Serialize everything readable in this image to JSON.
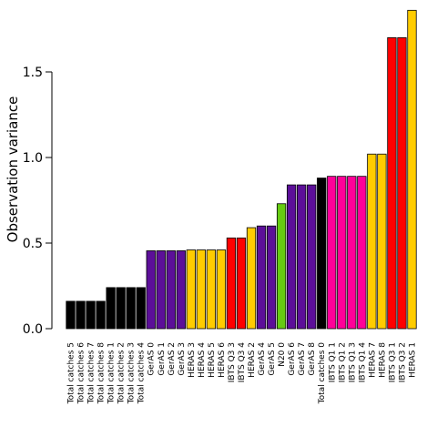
{
  "chart_data": {
    "type": "bar",
    "ylabel": "Observation variance",
    "xlabel": "",
    "ylim": [
      0,
      1.85
    ],
    "yticks": [
      "0.0",
      "0.5",
      "1.0",
      "1.5"
    ],
    "grid": false,
    "legend": "none",
    "categories": [
      "Total catches 5",
      "Total catches 6",
      "Total catches 7",
      "Total catches 8",
      "Total catches 1",
      "Total catches 2",
      "Total catches 3",
      "Total catches 4",
      "GerAS 0",
      "GerAS 1",
      "GerAS 2",
      "GerAS 3",
      "HERAS 3",
      "HERAS 4",
      "HERAS 5",
      "HERAS 6",
      "IBTS Q3 3",
      "IBTS Q3 4",
      "HERAS 2",
      "GerAS 4",
      "GerAS 5",
      "N20 0",
      "GerAS 6",
      "GerAS 7",
      "GerAS 8",
      "Total catches 0",
      "IBTS Q1 1",
      "IBTS Q1 2",
      "IBTS Q1 3",
      "IBTS Q1 4",
      "HERAS 7",
      "HERAS 8",
      "IBTS Q3 1",
      "IBTS Q3 2",
      "HERAS 1"
    ],
    "values": [
      0.16,
      0.16,
      0.16,
      0.16,
      0.24,
      0.24,
      0.24,
      0.24,
      0.455,
      0.455,
      0.455,
      0.455,
      0.46,
      0.46,
      0.46,
      0.46,
      0.53,
      0.53,
      0.59,
      0.6,
      0.6,
      0.73,
      0.84,
      0.84,
      0.84,
      0.88,
      0.89,
      0.89,
      0.89,
      0.89,
      1.02,
      1.02,
      1.7,
      1.7,
      1.86
    ],
    "colors": [
      "#000000",
      "#000000",
      "#000000",
      "#000000",
      "#000000",
      "#000000",
      "#000000",
      "#000000",
      "#5c0f99",
      "#5c0f99",
      "#5c0f99",
      "#5c0f99",
      "#ffcc00",
      "#ffcc00",
      "#ffcc00",
      "#ffcc00",
      "#ff0000",
      "#ff0000",
      "#ffcc00",
      "#5c0f99",
      "#5c0f99",
      "#66cc11",
      "#5c0f99",
      "#5c0f99",
      "#5c0f99",
      "#000000",
      "#ff0099",
      "#ff0099",
      "#ff0099",
      "#ff0099",
      "#ffcc00",
      "#ffcc00",
      "#ff0000",
      "#ff0000",
      "#ffcc00"
    ]
  }
}
